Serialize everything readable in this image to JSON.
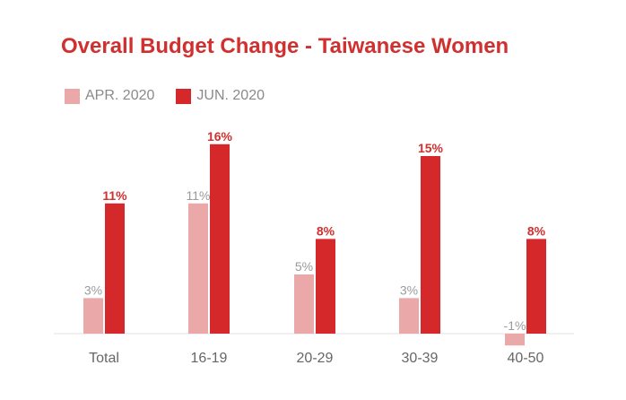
{
  "chart_data": {
    "type": "bar",
    "title": "Overall Budget Change - Taiwanese Women",
    "categories": [
      "Total",
      "16-19",
      "20-29",
      "30-39",
      "40-50"
    ],
    "series": [
      {
        "name": "APR. 2020",
        "color": "#eaa9a8",
        "label_color": "#9a9a9a",
        "values": [
          3,
          11,
          5,
          3,
          -1
        ],
        "labels": [
          "3%",
          "11%",
          "5%",
          "3%",
          "-1%"
        ]
      },
      {
        "name": "JUN. 2020",
        "color": "#d4282a",
        "label_color": "#d0302f",
        "values": [
          11,
          16,
          8,
          15,
          8
        ],
        "labels": [
          "11%",
          "16%",
          "8%",
          "15%",
          "8%"
        ]
      }
    ],
    "xlabel": "",
    "ylabel": "",
    "ylim": [
      -1,
      16
    ],
    "grid": false,
    "legend_position": "top-left"
  },
  "colors": {
    "title": "#d0302f",
    "tick_label": "#666666",
    "baseline": "#e2e2e2"
  }
}
